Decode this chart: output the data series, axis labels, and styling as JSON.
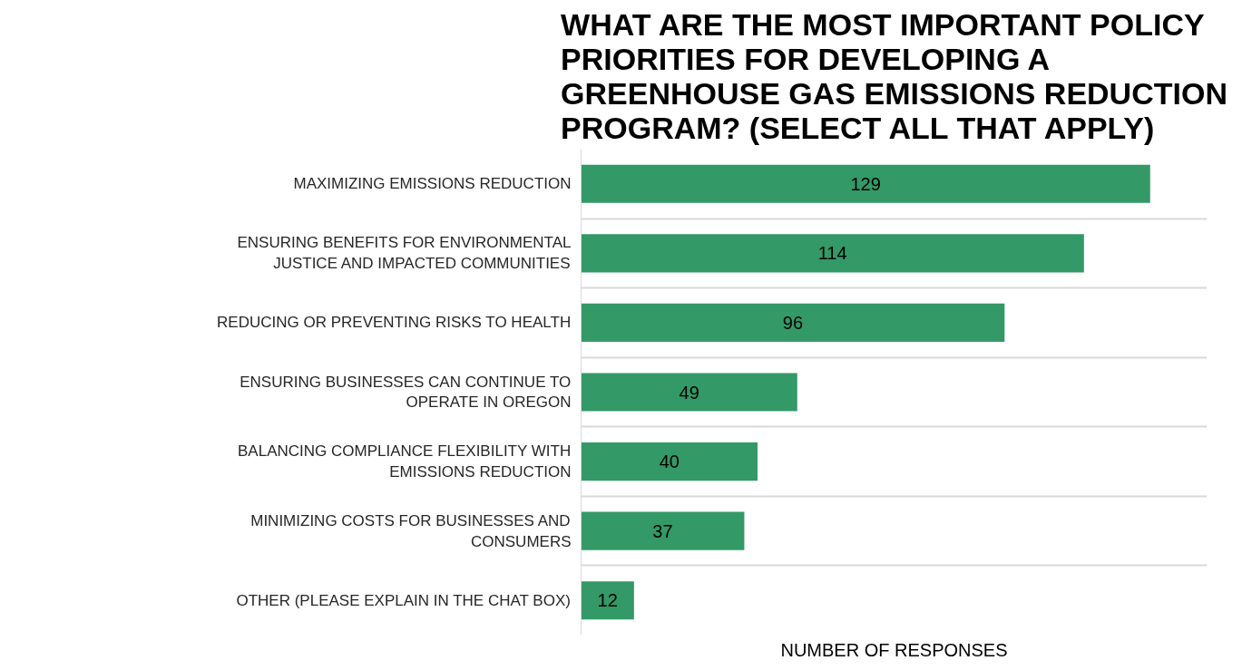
{
  "chart_data": {
    "type": "bar",
    "orientation": "horizontal",
    "title": "WHAT ARE THE MOST IMPORTANT POLICY PRIORITIES FOR DEVELOPING A GREENHOUSE GAS EMISSIONS REDUCTION PROGRAM? (SELECT ALL THAT APPLY)",
    "xlabel": "NUMBER OF RESPONSES",
    "categories": [
      "MAXIMIZING EMISSIONS REDUCTION",
      "ENSURING BENEFITS FOR ENVIRONMENTAL JUSTICE AND IMPACTED COMMUNITIES",
      "REDUCING OR PREVENTING RISKS TO HEALTH",
      "ENSURING BUSINESSES CAN CONTINUE TO OPERATE IN OREGON",
      "BALANCING COMPLIANCE FLEXIBILITY WITH EMISSIONS REDUCTION",
      "MINIMIZING COSTS FOR BUSINESSES AND CONSUMERS",
      "OTHER (PLEASE EXPLAIN IN THE CHAT BOX)"
    ],
    "values": [
      129,
      114,
      96,
      49,
      40,
      37,
      12
    ],
    "color": "#339966",
    "data_labels": true,
    "grid": "y",
    "tick_labels": "y"
  }
}
